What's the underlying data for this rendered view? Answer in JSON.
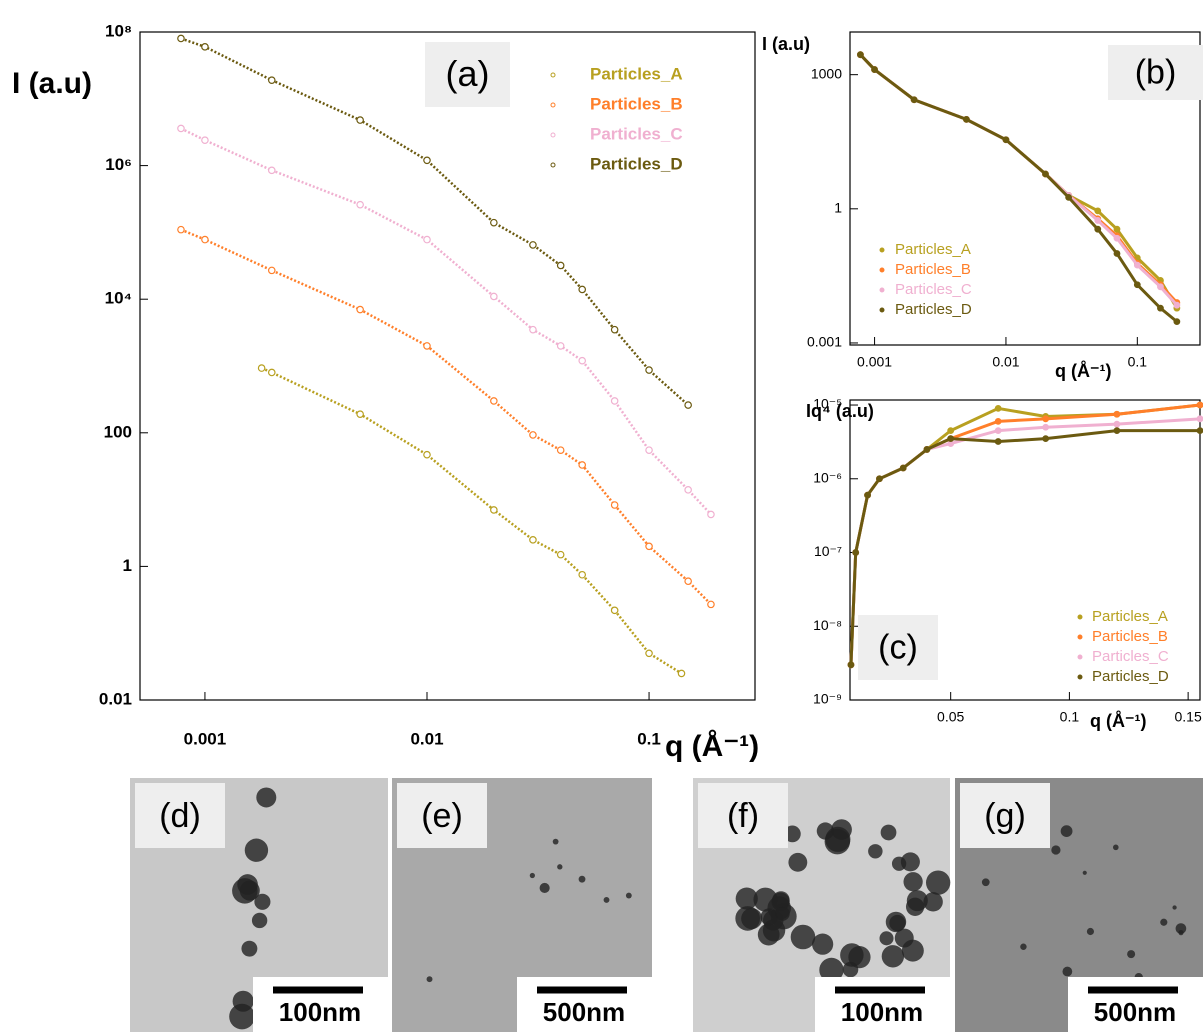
{
  "chart_data": [
    {
      "type": "scatter",
      "panel_label": "(a)",
      "x_label": "q (Å⁻¹)",
      "y_label": "I (a.u)",
      "xscale": "log",
      "yscale": "log",
      "xlim": [
        0.00051,
        0.3
      ],
      "ylim": [
        0.01,
        100000000
      ],
      "xticks": [
        0.001,
        0.01,
        0.1
      ],
      "yticks": [
        0.01,
        1,
        100,
        {
          "value": 10000,
          "label": "10⁴"
        },
        {
          "value": 1000000,
          "label": "10⁶"
        },
        {
          "value": 100000000,
          "label": "10⁸"
        }
      ],
      "legend": "upper right",
      "marker": "open",
      "series": [
        {
          "name": "Particles_A",
          "color": "#b8a020",
          "x": [
            0.0018,
            0.002,
            0.005,
            0.01,
            0.02,
            0.03,
            0.04,
            0.05,
            0.07,
            0.1,
            0.14
          ],
          "values": [
            930,
            800,
            190,
            47,
            7,
            2.5,
            1.5,
            0.75,
            0.22,
            0.05,
            0.025
          ]
        },
        {
          "name": "Particles_B",
          "color": "#ff7f2a",
          "x": [
            0.00078,
            0.001,
            0.002,
            0.005,
            0.01,
            0.02,
            0.03,
            0.04,
            0.05,
            0.07,
            0.1,
            0.15,
            0.19
          ],
          "values": [
            110000,
            78000,
            27000,
            7000,
            2000,
            300,
            93,
            55,
            33,
            8.3,
            2,
            0.6,
            0.27
          ]
        },
        {
          "name": "Particles_C",
          "color": "#f0b0d0",
          "x": [
            0.00078,
            0.001,
            0.002,
            0.005,
            0.01,
            0.02,
            0.03,
            0.04,
            0.05,
            0.07,
            0.1,
            0.15,
            0.19
          ],
          "values": [
            3600000,
            2400000,
            850000,
            260000,
            78000,
            11000,
            3500,
            2000,
            1200,
            300,
            55,
            14,
            6
          ]
        },
        {
          "name": "Particles_D",
          "color": "#6b5a10",
          "x": [
            0.00078,
            0.001,
            0.002,
            0.005,
            0.01,
            0.02,
            0.03,
            0.04,
            0.05,
            0.07,
            0.1,
            0.15
          ],
          "values": [
            80000000,
            60000000,
            19000000,
            4800000,
            1200000,
            140000,
            65000,
            32000,
            14000,
            3500,
            870,
            260
          ]
        }
      ]
    },
    {
      "type": "scatter",
      "panel_label": "(b)",
      "x_label": "q (Å⁻¹)",
      "y_label": "I (a.u)",
      "xscale": "log",
      "yscale": "log",
      "xlim": [
        0.00065,
        0.3
      ],
      "ylim": [
        0.0009,
        9000
      ],
      "xticks": [
        0.001,
        0.01,
        0.1
      ],
      "yticks": [
        0.001,
        1,
        1000
      ],
      "legend": "lower left",
      "marker": "dot",
      "series": [
        {
          "name": "Particles_A",
          "color": "#b8a020",
          "x": [
            0.00078,
            0.001,
            0.002,
            0.005,
            0.01,
            0.02,
            0.03,
            0.05,
            0.07,
            0.1,
            0.15,
            0.2
          ],
          "values": [
            2800,
            1300,
            275,
            100,
            35,
            6,
            2,
            0.9,
            0.35,
            0.08,
            0.025,
            0.006
          ]
        },
        {
          "name": "Particles_B",
          "color": "#ff7f2a",
          "x": [
            0.00078,
            0.001,
            0.002,
            0.005,
            0.01,
            0.02,
            0.03,
            0.05,
            0.07,
            0.1,
            0.15,
            0.2
          ],
          "values": [
            2800,
            1300,
            275,
            100,
            35,
            6,
            2,
            0.6,
            0.25,
            0.06,
            0.02,
            0.008
          ]
        },
        {
          "name": "Particles_C",
          "color": "#f0b0d0",
          "x": [
            0.00078,
            0.001,
            0.002,
            0.005,
            0.01,
            0.02,
            0.03,
            0.05,
            0.07,
            0.1,
            0.15,
            0.2
          ],
          "values": [
            2800,
            1300,
            275,
            100,
            35,
            6,
            2,
            0.55,
            0.22,
            0.055,
            0.018,
            0.007
          ]
        },
        {
          "name": "Particles_D",
          "color": "#6b5a10",
          "x": [
            0.00078,
            0.001,
            0.002,
            0.005,
            0.01,
            0.02,
            0.03,
            0.05,
            0.07,
            0.1,
            0.15,
            0.2
          ],
          "values": [
            2800,
            1300,
            275,
            100,
            35,
            6,
            1.8,
            0.35,
            0.1,
            0.02,
            0.006,
            0.003
          ]
        }
      ]
    },
    {
      "type": "scatter",
      "panel_label": "(c)",
      "x_label": "q (Å⁻¹)",
      "y_label": "Iq⁴ (a.u)",
      "xscale": "linear",
      "yscale": "log",
      "xlim": [
        0.0076,
        0.155
      ],
      "ylim": [
        1e-09,
        1.17e-05
      ],
      "xticks": [
        0.05,
        0.1,
        0.15
      ],
      "yticks": [
        {
          "value": 1e-09,
          "label": "10⁻⁹"
        },
        {
          "value": 1e-08,
          "label": "10⁻⁸"
        },
        {
          "value": 1e-07,
          "label": "10⁻⁷"
        },
        {
          "value": 1e-06,
          "label": "10⁻⁶"
        },
        {
          "value": 1e-05,
          "label": "10⁻⁵"
        }
      ],
      "legend": "lower right",
      "marker": "dot",
      "series": [
        {
          "name": "Particles_A",
          "color": "#b8a020",
          "x": [
            0.008,
            0.01,
            0.015,
            0.02,
            0.03,
            0.04,
            0.05,
            0.07,
            0.09,
            0.12,
            0.155
          ],
          "values": [
            3e-09,
            1e-07,
            6e-07,
            1e-06,
            1.4e-06,
            2.5e-06,
            4.5e-06,
            9e-06,
            7e-06,
            7.5e-06,
            1e-05
          ]
        },
        {
          "name": "Particles_B",
          "color": "#ff7f2a",
          "x": [
            0.008,
            0.01,
            0.015,
            0.02,
            0.03,
            0.04,
            0.05,
            0.07,
            0.09,
            0.12,
            0.155
          ],
          "values": [
            3e-09,
            1e-07,
            6e-07,
            1e-06,
            1.4e-06,
            2.5e-06,
            3.5e-06,
            6e-06,
            6.5e-06,
            7.5e-06,
            1e-05
          ]
        },
        {
          "name": "Particles_C",
          "color": "#f0b0d0",
          "x": [
            0.008,
            0.01,
            0.015,
            0.02,
            0.03,
            0.04,
            0.05,
            0.07,
            0.09,
            0.12,
            0.155
          ],
          "values": [
            3e-09,
            1e-07,
            6e-07,
            1e-06,
            1.4e-06,
            2.5e-06,
            3e-06,
            4.5e-06,
            5e-06,
            5.5e-06,
            6.5e-06
          ]
        },
        {
          "name": "Particles_D",
          "color": "#6b5a10",
          "x": [
            0.008,
            0.01,
            0.015,
            0.02,
            0.03,
            0.04,
            0.05,
            0.07,
            0.09,
            0.12,
            0.155
          ],
          "values": [
            3e-09,
            1e-07,
            6e-07,
            1e-06,
            1.4e-06,
            2.5e-06,
            3.5e-06,
            3.2e-06,
            3.5e-06,
            4.5e-06,
            4.5e-06
          ]
        }
      ]
    }
  ],
  "panels": [
    {
      "label": "(d)",
      "scale": "100nm"
    },
    {
      "label": "(e)",
      "scale": "500nm"
    },
    {
      "label": "(f)",
      "scale": "100nm"
    },
    {
      "label": "(g)",
      "scale": "500nm"
    }
  ]
}
